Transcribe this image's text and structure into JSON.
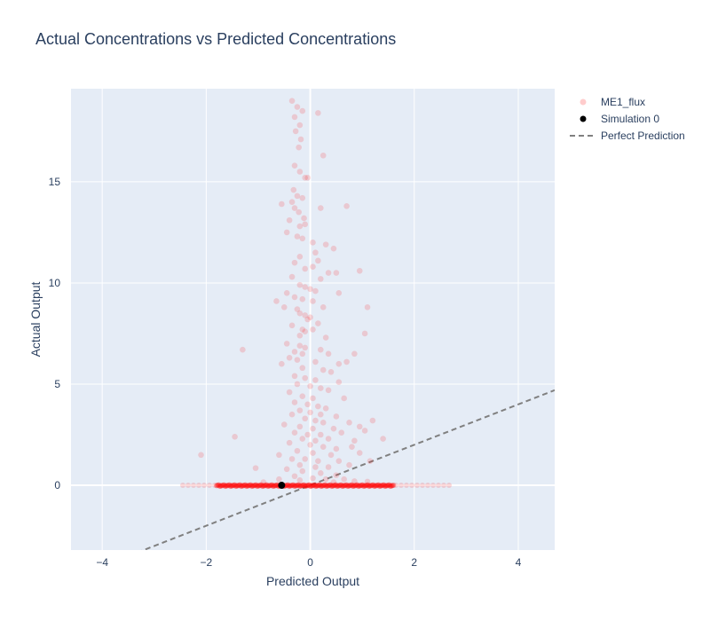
{
  "chart_data": {
    "type": "scatter",
    "title": "Actual Concentrations vs Predicted Concentrations",
    "xlabel": "Predicted Output",
    "ylabel": "Actual Output",
    "xlim": [
      -4.6,
      4.7
    ],
    "ylim": [
      -3.2,
      19.6
    ],
    "x_ticks": [
      -4,
      -2,
      0,
      2,
      4
    ],
    "y_ticks": [
      0,
      5,
      10,
      15
    ],
    "grid": true,
    "legend_position": "top-right outside",
    "colors": {
      "background": "#e5ecf6",
      "grid": "#ffffff",
      "me1_flux": "#ff0000",
      "simulation": "#000000",
      "perfect": "#808080"
    },
    "series": [
      {
        "name": "ME1_flux",
        "mode": "markers",
        "opacity": 0.15,
        "points": [
          [
            -0.35,
            19.0
          ],
          [
            -0.25,
            18.7
          ],
          [
            -0.15,
            18.5
          ],
          [
            0.15,
            18.4
          ],
          [
            -0.3,
            18.2
          ],
          [
            -0.2,
            17.8
          ],
          [
            -0.28,
            17.5
          ],
          [
            -0.18,
            17.1
          ],
          [
            -0.22,
            16.7
          ],
          [
            0.25,
            16.3
          ],
          [
            -0.3,
            15.8
          ],
          [
            -0.2,
            15.5
          ],
          [
            -0.1,
            15.2
          ],
          [
            -0.05,
            15.2
          ],
          [
            -0.32,
            14.6
          ],
          [
            -0.25,
            14.3
          ],
          [
            -0.15,
            14.2
          ],
          [
            -0.35,
            14.0
          ],
          [
            -0.55,
            13.9
          ],
          [
            -0.3,
            13.7
          ],
          [
            0.2,
            13.7
          ],
          [
            0.7,
            13.8
          ],
          [
            -0.22,
            13.5
          ],
          [
            -0.12,
            13.2
          ],
          [
            -0.4,
            13.1
          ],
          [
            -0.2,
            12.8
          ],
          [
            -0.1,
            12.9
          ],
          [
            -0.45,
            12.5
          ],
          [
            -0.25,
            12.3
          ],
          [
            -0.15,
            12.2
          ],
          [
            0.05,
            12.0
          ],
          [
            0.3,
            11.9
          ],
          [
            0.45,
            11.7
          ],
          [
            0.1,
            11.5
          ],
          [
            -0.2,
            11.3
          ],
          [
            -0.3,
            11.0
          ],
          [
            0.15,
            11.1
          ],
          [
            0.05,
            10.8
          ],
          [
            -0.1,
            10.7
          ],
          [
            0.35,
            10.5
          ],
          [
            0.5,
            10.5
          ],
          [
            0.95,
            10.6
          ],
          [
            -0.35,
            10.3
          ],
          [
            0.2,
            10.2
          ],
          [
            -0.2,
            9.9
          ],
          [
            -0.1,
            9.8
          ],
          [
            0.0,
            9.7
          ],
          [
            0.1,
            9.6
          ],
          [
            0.55,
            9.5
          ],
          [
            -0.45,
            9.5
          ],
          [
            -0.3,
            9.3
          ],
          [
            -0.15,
            9.2
          ],
          [
            0.05,
            9.1
          ],
          [
            -0.65,
            9.1
          ],
          [
            -0.5,
            8.8
          ],
          [
            -0.25,
            8.7
          ],
          [
            0.25,
            8.8
          ],
          [
            1.1,
            8.8
          ],
          [
            -0.2,
            8.5
          ],
          [
            -0.1,
            8.4
          ],
          [
            0.0,
            8.3
          ],
          [
            -0.05,
            8.2
          ],
          [
            0.15,
            8.0
          ],
          [
            -0.35,
            7.9
          ],
          [
            -0.15,
            7.7
          ],
          [
            -0.1,
            7.6
          ],
          [
            0.05,
            7.7
          ],
          [
            -0.2,
            7.4
          ],
          [
            0.3,
            7.3
          ],
          [
            1.05,
            7.5
          ],
          [
            -0.45,
            7.0
          ],
          [
            -0.2,
            6.9
          ],
          [
            -0.1,
            6.8
          ],
          [
            0.2,
            6.7
          ],
          [
            -0.3,
            6.6
          ],
          [
            -0.15,
            6.5
          ],
          [
            0.35,
            6.5
          ],
          [
            0.85,
            6.5
          ],
          [
            -1.3,
            6.7
          ],
          [
            -0.55,
            6.0
          ],
          [
            -0.4,
            6.3
          ],
          [
            -0.25,
            6.2
          ],
          [
            0.1,
            6.1
          ],
          [
            0.55,
            6.0
          ],
          [
            0.7,
            6.1
          ],
          [
            -0.15,
            5.8
          ],
          [
            0.25,
            5.7
          ],
          [
            0.4,
            5.6
          ],
          [
            -0.3,
            5.4
          ],
          [
            -0.1,
            5.3
          ],
          [
            0.1,
            5.2
          ],
          [
            0.55,
            5.1
          ],
          [
            -0.25,
            5.0
          ],
          [
            0.0,
            4.9
          ],
          [
            0.2,
            4.8
          ],
          [
            0.35,
            4.7
          ],
          [
            -0.4,
            4.6
          ],
          [
            -0.15,
            4.4
          ],
          [
            0.05,
            4.3
          ],
          [
            0.65,
            4.3
          ],
          [
            -0.3,
            4.1
          ],
          [
            -0.05,
            4.0
          ],
          [
            0.15,
            3.9
          ],
          [
            0.3,
            3.8
          ],
          [
            -0.2,
            3.7
          ],
          [
            0.0,
            3.6
          ],
          [
            0.2,
            3.5
          ],
          [
            0.5,
            3.4
          ],
          [
            -0.35,
            3.5
          ],
          [
            -0.1,
            3.3
          ],
          [
            0.1,
            3.2
          ],
          [
            -0.5,
            3.0
          ],
          [
            0.25,
            3.1
          ],
          [
            0.75,
            3.1
          ],
          [
            1.2,
            3.2
          ],
          [
            -0.2,
            2.9
          ],
          [
            0.05,
            2.8
          ],
          [
            0.45,
            2.8
          ],
          [
            0.95,
            2.9
          ],
          [
            -0.3,
            2.6
          ],
          [
            -0.05,
            2.5
          ],
          [
            0.2,
            2.5
          ],
          [
            0.6,
            2.6
          ],
          [
            1.05,
            2.7
          ],
          [
            -0.15,
            2.3
          ],
          [
            0.1,
            2.2
          ],
          [
            0.35,
            2.3
          ],
          [
            0.85,
            2.2
          ],
          [
            1.4,
            2.3
          ],
          [
            -1.45,
            2.4
          ],
          [
            -0.4,
            2.1
          ],
          [
            0.0,
            2.0
          ],
          [
            0.25,
            1.9
          ],
          [
            0.5,
            1.8
          ],
          [
            0.8,
            1.9
          ],
          [
            -0.25,
            1.7
          ],
          [
            0.05,
            1.6
          ],
          [
            0.4,
            1.5
          ],
          [
            0.95,
            1.6
          ],
          [
            -0.6,
            1.5
          ],
          [
            -2.1,
            1.5
          ],
          [
            -0.35,
            1.3
          ],
          [
            -0.1,
            1.3
          ],
          [
            0.15,
            1.2
          ],
          [
            0.55,
            1.2
          ],
          [
            1.15,
            1.2
          ],
          [
            -0.2,
            1.0
          ],
          [
            0.1,
            0.9
          ],
          [
            0.35,
            0.9
          ],
          [
            0.75,
            1.0
          ],
          [
            -1.05,
            0.85
          ],
          [
            -0.45,
            0.8
          ],
          [
            -0.15,
            0.7
          ],
          [
            0.2,
            0.6
          ],
          [
            0.5,
            0.5
          ],
          [
            -0.3,
            0.45
          ],
          [
            0.05,
            0.35
          ],
          [
            0.3,
            0.3
          ],
          [
            0.65,
            0.3
          ],
          [
            -0.2,
            0.25
          ],
          [
            -0.6,
            0.3
          ],
          [
            0.85,
            0.2
          ],
          [
            1.1,
            0.18
          ],
          [
            -0.9,
            0.15
          ],
          [
            0.45,
            0.15
          ]
        ]
      },
      {
        "name": "Simulation 0",
        "mode": "markers",
        "points": [
          [
            -0.55,
            0.0
          ]
        ]
      },
      {
        "name": "Perfect Prediction",
        "mode": "lines",
        "dash": "dash",
        "x": [
          -4.6,
          4.7
        ],
        "y": [
          -4.6,
          4.7
        ]
      }
    ],
    "band": {
      "series": "ME1_flux",
      "y": 0.0,
      "x_range": [
        -2.45,
        2.7
      ],
      "dense_x_range": [
        -1.8,
        1.6
      ]
    }
  }
}
